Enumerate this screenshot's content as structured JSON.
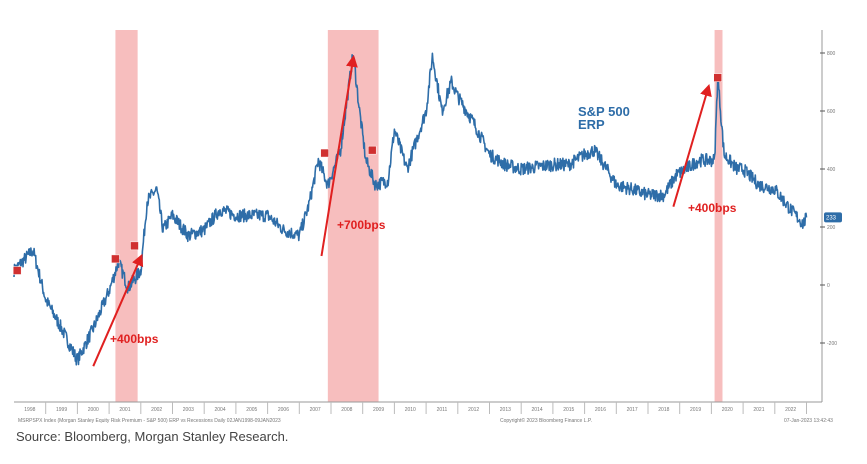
{
  "chart_data": {
    "type": "line",
    "title": "",
    "series_name": "S&P 500 ERP",
    "annotation_label": "S&P 500\nERP",
    "ylabel": "",
    "ylim": [
      -350,
      850
    ],
    "yticks": [
      800,
      600,
      400,
      200,
      0,
      -200
    ],
    "last_value_label": "233",
    "x_ticks": [
      "1998",
      "1999",
      "2000",
      "2001",
      "2002",
      "2003",
      "2004",
      "2005",
      "2006",
      "2007",
      "2008",
      "2009",
      "2010",
      "2011",
      "2012",
      "2013",
      "2014",
      "2015",
      "2016",
      "2017",
      "2018",
      "2019",
      "2020",
      "2021",
      "2022"
    ],
    "points": [
      [
        1998.0,
        50
      ],
      [
        1998.6,
        120
      ],
      [
        1999.0,
        -50
      ],
      [
        1999.5,
        -150
      ],
      [
        2000.0,
        -260
      ],
      [
        2000.5,
        -150
      ],
      [
        2001.0,
        -20
      ],
      [
        2001.3,
        80
      ],
      [
        2001.6,
        -10
      ],
      [
        2002.0,
        50
      ],
      [
        2002.2,
        290
      ],
      [
        2002.5,
        330
      ],
      [
        2002.7,
        190
      ],
      [
        2003.0,
        240
      ],
      [
        2003.5,
        170
      ],
      [
        2004.0,
        190
      ],
      [
        2004.5,
        260
      ],
      [
        2005.0,
        240
      ],
      [
        2006.0,
        240
      ],
      [
        2006.5,
        190
      ],
      [
        2007.0,
        170
      ],
      [
        2007.3,
        275
      ],
      [
        2007.6,
        430
      ],
      [
        2007.9,
        345
      ],
      [
        2008.3,
        465
      ],
      [
        2008.7,
        800
      ],
      [
        2008.9,
        600
      ],
      [
        2009.1,
        430
      ],
      [
        2009.4,
        345
      ],
      [
        2009.8,
        360
      ],
      [
        2010.0,
        535
      ],
      [
        2010.4,
        400
      ],
      [
        2010.8,
        535
      ],
      [
        2011.0,
        600
      ],
      [
        2011.2,
        790
      ],
      [
        2011.5,
        600
      ],
      [
        2011.8,
        700
      ],
      [
        2012.0,
        650
      ],
      [
        2012.5,
        560
      ],
      [
        2013.0,
        450
      ],
      [
        2013.5,
        415
      ],
      [
        2014.0,
        400
      ],
      [
        2015.0,
        415
      ],
      [
        2015.5,
        415
      ],
      [
        2016.0,
        450
      ],
      [
        2016.3,
        465
      ],
      [
        2016.7,
        400
      ],
      [
        2017.0,
        345
      ],
      [
        2017.5,
        330
      ],
      [
        2018.0,
        310
      ],
      [
        2018.5,
        310
      ],
      [
        2018.9,
        380
      ],
      [
        2019.2,
        400
      ],
      [
        2019.6,
        430
      ],
      [
        2020.1,
        430
      ],
      [
        2020.2,
        720
      ],
      [
        2020.4,
        450
      ],
      [
        2020.8,
        400
      ],
      [
        2021.0,
        400
      ],
      [
        2021.5,
        345
      ],
      [
        2022.0,
        330
      ],
      [
        2022.5,
        260
      ],
      [
        2022.9,
        210
      ],
      [
        2023.0,
        233
      ]
    ],
    "recessions": [
      [
        2001.2,
        2001.9
      ],
      [
        2007.9,
        2009.5
      ],
      [
        2020.1,
        2020.35
      ]
    ],
    "arrows": [
      {
        "from": [
          2000.5,
          -280
        ],
        "to": [
          2002.0,
          95
        ],
        "label": "+400bps"
      },
      {
        "from": [
          2007.7,
          100
        ],
        "to": [
          2008.7,
          780
        ],
        "label": "+700bps"
      },
      {
        "from": [
          2018.8,
          270
        ],
        "to": [
          2019.9,
          680
        ],
        "label": "+400bps"
      }
    ],
    "markers": [
      [
        1998.1,
        50
      ],
      [
        2001.2,
        90
      ],
      [
        2001.8,
        135
      ],
      [
        2007.8,
        455
      ],
      [
        2009.3,
        465
      ],
      [
        2020.2,
        715
      ]
    ],
    "colors": {
      "line": "#2e6da8",
      "recession": "#f4a8a8",
      "arrow": "#e02020",
      "label": "#e02020",
      "annotation": "#2e6da8"
    }
  },
  "footer": {
    "bloomberg_caption": "MSRPSPX Index (Morgan Stanley Equity Risk Premium - S&P 500) ERP vs Recessions  Daily 02JAN1998-09JAN2023",
    "copyright": "Copyright© 2023 Bloomberg Finance L.P.",
    "timestamp": "07-Jan-2023 13:42:43",
    "source": "Source: Bloomberg, Morgan Stanley Research."
  }
}
